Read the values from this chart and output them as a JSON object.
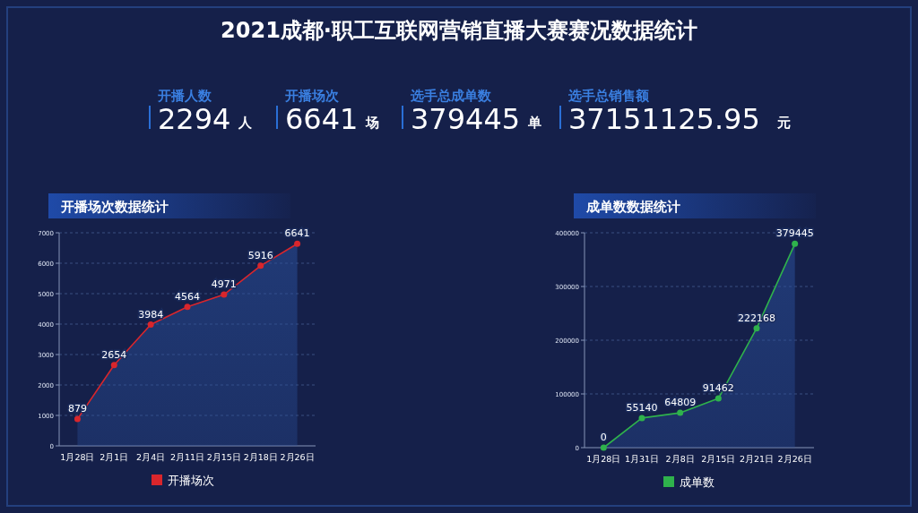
{
  "chart_data": [
    {
      "type": "other",
      "title": "2021成都·职工互联网营销直播大赛赛况数据统计",
      "categories": [
        "开播人数",
        "开播场次",
        "选手总成单数",
        "选手总销售额"
      ],
      "values": [
        2294,
        6641,
        379445,
        37151125.95
      ],
      "value_labels": [
        "2294",
        "6641",
        "379445",
        "37151125.95"
      ],
      "annotations": [
        "人",
        "场",
        "单",
        "元"
      ]
    },
    {
      "type": "area",
      "title": "开播场次数据统计",
      "categories": [
        "1月28日",
        "2月1日",
        "2月4日",
        "2月11日",
        "2月15日",
        "2月18日",
        "2月26日"
      ],
      "series": [
        {
          "name": "开播场次",
          "color": "#d9262c",
          "values": [
            879,
            2654,
            3984,
            4564,
            4971,
            5916,
            6641
          ]
        }
      ],
      "ylim": [
        0,
        7000
      ],
      "yticks": [
        0,
        1000,
        2000,
        3000,
        4000,
        5000,
        6000,
        7000
      ],
      "grid": "y",
      "legend": "bottom",
      "marker": "circle",
      "data_labels": true
    },
    {
      "type": "area",
      "title": "成单数数据统计",
      "categories": [
        "1月28日",
        "1月31日",
        "2月8日",
        "2月15日",
        "2月21日",
        "2月26日"
      ],
      "series": [
        {
          "name": "成单数",
          "color": "#2fb24c",
          "values": [
            0,
            55140,
            64809,
            91462,
            222168,
            379445
          ]
        }
      ],
      "ylim": [
        0,
        400000
      ],
      "yticks": [
        0,
        100000,
        200000,
        300000,
        400000
      ],
      "grid": "y",
      "legend": "bottom",
      "marker": "circle",
      "data_labels": true
    }
  ]
}
